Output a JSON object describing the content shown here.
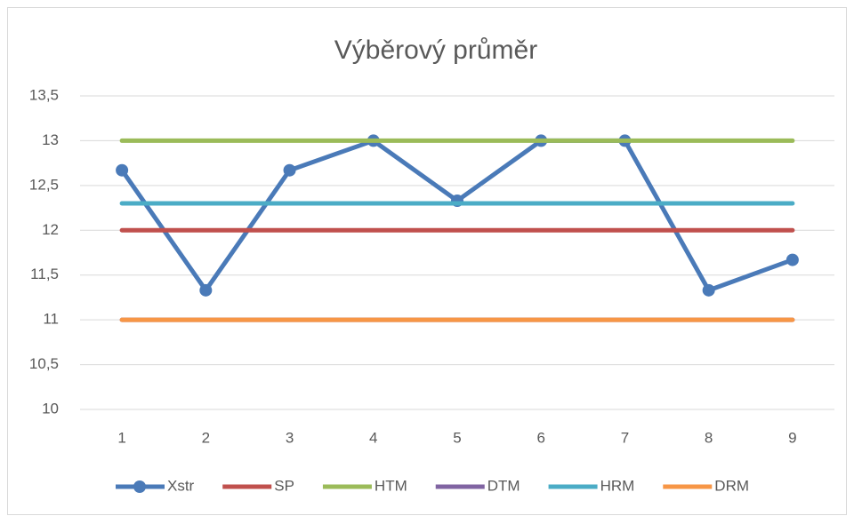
{
  "chart_data": {
    "type": "line",
    "title": "Výběrový průměr",
    "categories": [
      "1",
      "2",
      "3",
      "4",
      "5",
      "6",
      "7",
      "8",
      "9"
    ],
    "series": [
      {
        "name": "Xstr",
        "color": "#4a7ab8",
        "marker": true,
        "values": [
          12.67,
          11.33,
          12.67,
          13,
          12.33,
          13,
          13,
          11.33,
          11.67
        ]
      },
      {
        "name": "SP",
        "color": "#c0504d",
        "values": [
          12,
          12,
          12,
          12,
          12,
          12,
          12,
          12,
          12
        ]
      },
      {
        "name": "HTM",
        "color": "#9bbb59",
        "values": [
          13,
          13,
          13,
          13,
          13,
          13,
          13,
          13,
          13
        ]
      },
      {
        "name": "DTM",
        "color": "#8064a2",
        "values": [
          11,
          11,
          11,
          11,
          11,
          11,
          11,
          11,
          11
        ]
      },
      {
        "name": "HRM",
        "color": "#4bacc6",
        "values": [
          12.3,
          12.3,
          12.3,
          12.3,
          12.3,
          12.3,
          12.3,
          12.3,
          12.3
        ]
      },
      {
        "name": "DRM",
        "color": "#f79646",
        "values": [
          11,
          11,
          11,
          11,
          11,
          11,
          11,
          11,
          11
        ]
      }
    ],
    "ylim": [
      10,
      13.5
    ],
    "yticks": [
      10,
      {
        "value": 10.5,
        "label": "10,5"
      },
      11,
      {
        "value": 11.5,
        "label": "11,5"
      },
      12,
      {
        "value": 12.5,
        "label": "12,5"
      },
      13,
      {
        "value": 13.5,
        "label": "13,5"
      }
    ],
    "grid": true,
    "legend": "bottom"
  }
}
